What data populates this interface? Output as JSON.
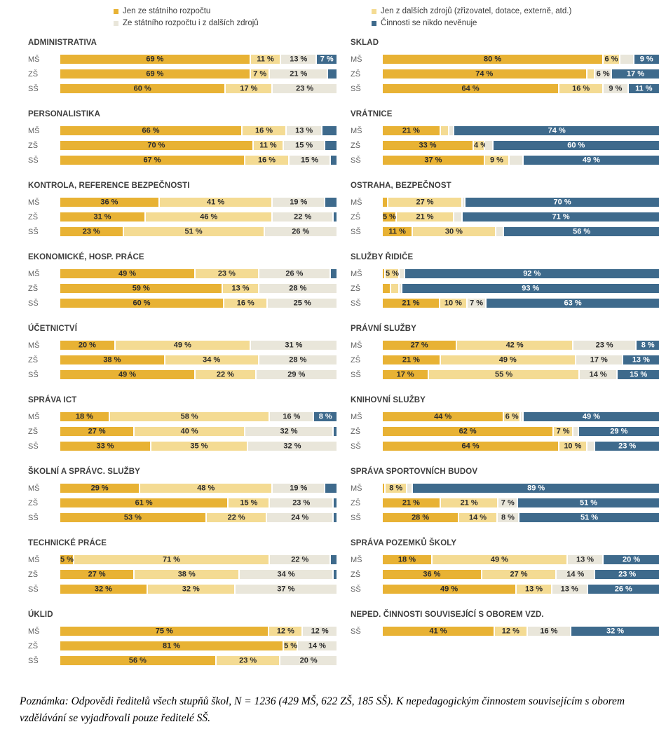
{
  "legend": {
    "items": [
      {
        "label": "Jen ze státního rozpočtu",
        "color": "#E8B234",
        "key": "state-budget-only"
      },
      {
        "label": "Ze státního rozpočtu i z dalších zdrojů",
        "color": "#E9E6DA",
        "key": "state-and-other-sources"
      },
      {
        "label": "Jen z dalších zdrojů (zřizovatel, dotace, externě, atd.)",
        "color": "#F4DB93",
        "key": "other-sources-only"
      },
      {
        "label": "Činnosti se nikdo nevěnuje",
        "color": "#3E6A8C",
        "key": "activity-unattended"
      }
    ]
  },
  "colors": {
    "gold": "#E8B234",
    "light_yellow": "#F4DB93",
    "cream": "#E9E6DA",
    "dark_blue": "#3E6A8C",
    "label_dark": "#2b2b2b",
    "label_light": "#ffffff"
  },
  "chart_data": {
    "type": "bar",
    "stacked": true,
    "orientation": "horizontal",
    "unit": "%",
    "row_categories": [
      "MŠ",
      "ZŠ",
      "SŠ"
    ],
    "series_order_in_bars": [
      "Jen ze státního rozpočtu",
      "Jen z dalších zdrojů (zřizovatel, dotace, externě, atd.)",
      "Ze státního rozpočtu i z dalších zdrojů",
      "Činnosti se nikdo nevěnuje"
    ],
    "series_colors": [
      "#E8B234",
      "#F4DB93",
      "#E9E6DA",
      "#3E6A8C"
    ],
    "panels": [
      {
        "title": "ADMINISTRATIVA",
        "col": 0,
        "rows": [
          {
            "label": "MŠ",
            "values": [
              69,
              11,
              13,
              7
            ],
            "labels": [
              "69 %",
              "11 %",
              "13 %",
              "7 %"
            ]
          },
          {
            "label": "ZŠ",
            "values": [
              69,
              7,
              21,
              3
            ],
            "labels": [
              "69 %",
              "7 %",
              "21 %",
              ""
            ]
          },
          {
            "label": "SŠ",
            "values": [
              60,
              17,
              23,
              0
            ],
            "labels": [
              "60 %",
              "17 %",
              "23 %",
              ""
            ]
          }
        ]
      },
      {
        "title": "PERSONALISTIKA",
        "col": 0,
        "rows": [
          {
            "label": "MŠ",
            "values": [
              66,
              16,
              13,
              5
            ],
            "labels": [
              "66 %",
              "16 %",
              "13 %",
              ""
            ]
          },
          {
            "label": "ZŠ",
            "values": [
              70,
              11,
              15,
              4
            ],
            "labels": [
              "70 %",
              "11 %",
              "15 %",
              ""
            ]
          },
          {
            "label": "SŠ",
            "values": [
              67,
              16,
              15,
              2
            ],
            "labels": [
              "67 %",
              "16 %",
              "15 %",
              ""
            ]
          }
        ]
      },
      {
        "title": "KONTROLA, REFERENCE BEZPEČNOSTI",
        "col": 0,
        "rows": [
          {
            "label": "MŠ",
            "values": [
              36,
              41,
              19,
              4
            ],
            "labels": [
              "36 %",
              "41 %",
              "19 %",
              ""
            ]
          },
          {
            "label": "ZŠ",
            "values": [
              31,
              46,
              22,
              1
            ],
            "labels": [
              "31 %",
              "46 %",
              "22 %",
              ""
            ]
          },
          {
            "label": "SŠ",
            "values": [
              23,
              51,
              26,
              0
            ],
            "labels": [
              "23 %",
              "51 %",
              "26 %",
              ""
            ]
          }
        ]
      },
      {
        "title": "EKONOMICKÉ, HOSP. PRÁCE",
        "col": 0,
        "rows": [
          {
            "label": "MŠ",
            "values": [
              49,
              23,
              26,
              2
            ],
            "labels": [
              "49 %",
              "23 %",
              "26 %",
              ""
            ]
          },
          {
            "label": "ZŠ",
            "values": [
              59,
              13,
              28,
              0
            ],
            "labels": [
              "59 %",
              "13 %",
              "28 %",
              ""
            ]
          },
          {
            "label": "SŠ",
            "values": [
              60,
              16,
              25,
              0
            ],
            "labels": [
              "60 %",
              "16 %",
              "25 %",
              ""
            ]
          }
        ]
      },
      {
        "title": "ÚČETNICTVÍ",
        "col": 0,
        "rows": [
          {
            "label": "MŠ",
            "values": [
              20,
              49,
              31,
              0
            ],
            "labels": [
              "20 %",
              "49 %",
              "31 %",
              ""
            ]
          },
          {
            "label": "ZŠ",
            "values": [
              38,
              34,
              28,
              0
            ],
            "labels": [
              "38 %",
              "34 %",
              "28 %",
              ""
            ]
          },
          {
            "label": "SŠ",
            "values": [
              49,
              22,
              29,
              0
            ],
            "labels": [
              "49 %",
              "22 %",
              "29 %",
              ""
            ]
          }
        ]
      },
      {
        "title": "SPRÁVA ICT",
        "col": 0,
        "rows": [
          {
            "label": "MŠ",
            "values": [
              18,
              58,
              16,
              8
            ],
            "labels": [
              "18 %",
              "58 %",
              "16 %",
              "8 %"
            ]
          },
          {
            "label": "ZŠ",
            "values": [
              27,
              40,
              32,
              1
            ],
            "labels": [
              "27 %",
              "40 %",
              "32 %",
              ""
            ]
          },
          {
            "label": "SŠ",
            "values": [
              33,
              35,
              32,
              0
            ],
            "labels": [
              "33 %",
              "35 %",
              "32 %",
              ""
            ]
          }
        ]
      },
      {
        "title": "ŠKOLNÍ A SPRÁVC. SLUŽBY",
        "col": 0,
        "rows": [
          {
            "label": "MŠ",
            "values": [
              29,
              48,
              19,
              4
            ],
            "labels": [
              "29 %",
              "48 %",
              "19 %",
              ""
            ]
          },
          {
            "label": "ZŠ",
            "values": [
              61,
              15,
              23,
              1
            ],
            "labels": [
              "61 %",
              "15 %",
              "23 %",
              ""
            ]
          },
          {
            "label": "SŠ",
            "values": [
              53,
              22,
              24,
              1
            ],
            "labels": [
              "53 %",
              "22 %",
              "24 %",
              ""
            ]
          }
        ]
      },
      {
        "title": "TECHNICKÉ PRÁCE",
        "col": 0,
        "rows": [
          {
            "label": "MŠ",
            "values": [
              5,
              71,
              22,
              2
            ],
            "labels": [
              "5 %",
              "71 %",
              "22 %",
              ""
            ]
          },
          {
            "label": "ZŠ",
            "values": [
              27,
              38,
              34,
              1
            ],
            "labels": [
              "27 %",
              "38 %",
              "34 %",
              ""
            ]
          },
          {
            "label": "SŠ",
            "values": [
              32,
              32,
              37,
              0
            ],
            "labels": [
              "32 %",
              "32 %",
              "37 %",
              ""
            ]
          }
        ]
      },
      {
        "title": "ÚKLID",
        "col": 0,
        "rows": [
          {
            "label": "MŠ",
            "values": [
              75,
              12,
              12,
              0
            ],
            "labels": [
              "75 %",
              "12 %",
              "12 %",
              ""
            ]
          },
          {
            "label": "ZŠ",
            "values": [
              81,
              5,
              14,
              0
            ],
            "labels": [
              "81 %",
              "5 %",
              "14 %",
              ""
            ]
          },
          {
            "label": "SŠ",
            "values": [
              56,
              23,
              20,
              0
            ],
            "labels": [
              "56 %",
              "23 %",
              "20 %",
              ""
            ]
          }
        ]
      },
      {
        "title": "SKLAD",
        "col": 1,
        "rows": [
          {
            "label": "MŠ",
            "values": [
              80,
              6,
              5,
              9
            ],
            "labels": [
              "80 %",
              "6 %",
              "",
              "9 %"
            ]
          },
          {
            "label": "ZŠ",
            "values": [
              74,
              3,
              6,
              17
            ],
            "labels": [
              "74 %",
              "",
              "6 %",
              "17 %"
            ]
          },
          {
            "label": "SŠ",
            "values": [
              64,
              16,
              9,
              11
            ],
            "labels": [
              "64 %",
              "16 %",
              "9 %",
              "11 %"
            ]
          }
        ]
      },
      {
        "title": "VRÁTNICE",
        "col": 1,
        "rows": [
          {
            "label": "MŠ",
            "values": [
              21,
              3,
              2,
              74
            ],
            "labels": [
              "21 %",
              "",
              "",
              "74 %"
            ]
          },
          {
            "label": "ZŠ",
            "values": [
              33,
              4,
              3,
              60
            ],
            "labels": [
              "33 %",
              "4 %",
              "",
              "60 %"
            ]
          },
          {
            "label": "SŠ",
            "values": [
              37,
              9,
              5,
              49
            ],
            "labels": [
              "37 %",
              "9 %",
              "",
              "49 %"
            ]
          }
        ]
      },
      {
        "title": "OSTRAHA, BEZPEČNOST",
        "col": 1,
        "rows": [
          {
            "label": "MŠ",
            "values": [
              2,
              27,
              1,
              70
            ],
            "labels": [
              "",
              "27 %",
              "",
              "70 %"
            ]
          },
          {
            "label": "ZŠ",
            "values": [
              5,
              21,
              3,
              71
            ],
            "labels": [
              "5 %",
              "21 %",
              "",
              "71 %"
            ]
          },
          {
            "label": "SŠ",
            "values": [
              11,
              30,
              3,
              56
            ],
            "labels": [
              "11 %",
              "30 %",
              "",
              "56 %"
            ]
          }
        ]
      },
      {
        "title": "SLUŽBY ŘIDIČE",
        "col": 1,
        "rows": [
          {
            "label": "MŠ",
            "values": [
              1,
              5,
              2,
              92
            ],
            "labels": [
              "",
              "5 %",
              "",
              "92 %"
            ]
          },
          {
            "label": "ZŠ",
            "values": [
              3,
              3,
              1,
              93
            ],
            "labels": [
              "",
              "",
              "",
              "93 %"
            ]
          },
          {
            "label": "SŠ",
            "values": [
              21,
              10,
              7,
              63
            ],
            "labels": [
              "21 %",
              "10 %",
              "7 %",
              "63 %"
            ]
          }
        ]
      },
      {
        "title": "PRÁVNÍ SLUŽBY",
        "col": 1,
        "rows": [
          {
            "label": "MŠ",
            "values": [
              27,
              42,
              23,
              8
            ],
            "labels": [
              "27 %",
              "42 %",
              "23 %",
              "8 %"
            ]
          },
          {
            "label": "ZŠ",
            "values": [
              21,
              49,
              17,
              13
            ],
            "labels": [
              "21 %",
              "49 %",
              "17 %",
              "13 %"
            ]
          },
          {
            "label": "SŠ",
            "values": [
              17,
              55,
              14,
              15
            ],
            "labels": [
              "17 %",
              "55 %",
              "14 %",
              "15 %"
            ]
          }
        ]
      },
      {
        "title": "KNIHOVNÍ SLUŽBY",
        "col": 1,
        "rows": [
          {
            "label": "MŠ",
            "values": [
              44,
              6,
              1,
              49
            ],
            "labels": [
              "44 %",
              "6 %",
              "",
              "49 %"
            ]
          },
          {
            "label": "ZŠ",
            "values": [
              62,
              7,
              2,
              29
            ],
            "labels": [
              "62 %",
              "7 %",
              "",
              "29 %"
            ]
          },
          {
            "label": "SŠ",
            "values": [
              64,
              10,
              3,
              23
            ],
            "labels": [
              "64 %",
              "10 %",
              "",
              "23 %"
            ]
          }
        ]
      },
      {
        "title": "SPRÁVA SPORTOVNÍCH BUDOV",
        "col": 1,
        "rows": [
          {
            "label": "MŠ",
            "values": [
              1,
              8,
              2,
              89
            ],
            "labels": [
              "",
              "8 %",
              "",
              "89 %"
            ]
          },
          {
            "label": "ZŠ",
            "values": [
              21,
              21,
              7,
              51
            ],
            "labels": [
              "21 %",
              "21 %",
              "7 %",
              "51 %"
            ]
          },
          {
            "label": "SŠ",
            "values": [
              28,
              14,
              8,
              51
            ],
            "labels": [
              "28 %",
              "14 %",
              "8 %",
              "51 %"
            ]
          }
        ]
      },
      {
        "title": "SPRÁVA POZEMKŮ ŠKOLY",
        "col": 1,
        "rows": [
          {
            "label": "MŠ",
            "values": [
              18,
              49,
              13,
              20
            ],
            "labels": [
              "18 %",
              "49 %",
              "13 %",
              "20 %"
            ]
          },
          {
            "label": "ZŠ",
            "values": [
              36,
              27,
              14,
              23
            ],
            "labels": [
              "36 %",
              "27 %",
              "14 %",
              "23 %"
            ]
          },
          {
            "label": "SŠ",
            "values": [
              49,
              13,
              13,
              26
            ],
            "labels": [
              "49 %",
              "13 %",
              "13 %",
              "26 %"
            ]
          }
        ]
      },
      {
        "title": "NEPED. ČINNOSTI SOUVISEJÍCÍ S OBOREM VZD.",
        "col": 1,
        "rows": [
          {
            "label": "SŠ",
            "values": [
              41,
              12,
              16,
              32
            ],
            "labels": [
              "41 %",
              "12 %",
              "16 %",
              "32 %"
            ]
          }
        ]
      }
    ]
  },
  "note": "Poznámka: Odpovědi ředitelů všech stupňů škol, N = 1236 (429 MŠ, 622 ZŠ, 185 SŠ). K nepedagogickým činnostem souvisejícím s oborem vzdělávání se vyjadřovali pouze ředitelé SŠ."
}
